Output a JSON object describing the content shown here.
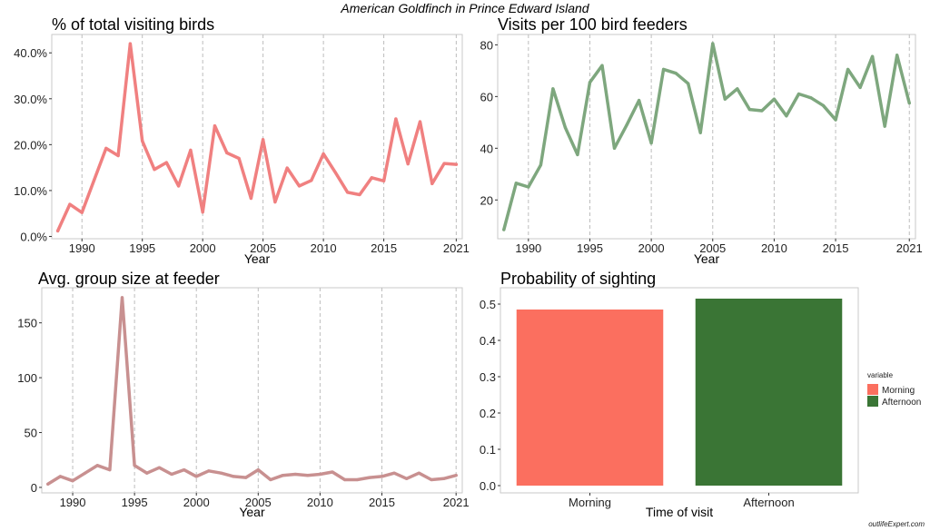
{
  "title": "American Goldfinch in Prince Edward Island",
  "credit": "outlifeExpert.com",
  "colors": {
    "panel_border": "#c9c9c9",
    "grid": "#bdbdbd",
    "pct_line": "#f08080",
    "visits_line": "#7ea77e",
    "group_line": "#c89090",
    "morning": "#fb6f5f",
    "afternoon": "#3a7535"
  },
  "chart_data": [
    {
      "type": "line",
      "title": "% of total visiting birds",
      "xlabel": "Year",
      "ylabel": "",
      "xlim": [
        1987.5,
        2021.5
      ],
      "ylim": [
        -0.5,
        44
      ],
      "x_ticks": [
        1990,
        1995,
        2000,
        2005,
        2010,
        2015,
        2021
      ],
      "y_ticks": [
        0,
        10,
        20,
        30,
        40
      ],
      "y_tick_labels": [
        "0.0%",
        "10.0%",
        "20.0%",
        "30.0%",
        "40.0%"
      ],
      "grid": "dashed vertical",
      "color": "#f08080",
      "x": [
        1988,
        1989,
        1990,
        1991,
        1992,
        1993,
        1994,
        1995,
        1996,
        1997,
        1998,
        1999,
        2000,
        2001,
        2002,
        2003,
        2004,
        2005,
        2006,
        2007,
        2008,
        2009,
        2010,
        2011,
        2012,
        2013,
        2014,
        2015,
        2016,
        2017,
        2018,
        2019,
        2020,
        2021
      ],
      "values": [
        1.2,
        7.0,
        5.2,
        12.2,
        19.2,
        17.6,
        42.0,
        20.8,
        14.6,
        16.1,
        11.0,
        18.8,
        5.3,
        24.1,
        18.2,
        17.0,
        8.3,
        21.1,
        7.5,
        14.9,
        11.0,
        12.2,
        18.0,
        13.9,
        9.6,
        9.1,
        12.8,
        12.1,
        25.6,
        15.8,
        25.0,
        11.5,
        15.9,
        15.7
      ]
    },
    {
      "type": "line",
      "title": "Visits per 100 bird feeders",
      "xlabel": "Year",
      "ylabel": "",
      "xlim": [
        1987.5,
        2021.5
      ],
      "ylim": [
        5,
        84
      ],
      "x_ticks": [
        1990,
        1995,
        2000,
        2005,
        2010,
        2015,
        2021
      ],
      "y_ticks": [
        20,
        40,
        60,
        80
      ],
      "y_tick_labels": [
        "20",
        "40",
        "60",
        "80"
      ],
      "grid": "dashed vertical",
      "color": "#7ea77e",
      "x": [
        1988,
        1989,
        1990,
        1991,
        1992,
        1993,
        1994,
        1995,
        1996,
        1997,
        1998,
        1999,
        2000,
        2001,
        2002,
        2003,
        2004,
        2005,
        2006,
        2007,
        2008,
        2009,
        2010,
        2011,
        2012,
        2013,
        2014,
        2015,
        2016,
        2017,
        2018,
        2019,
        2020,
        2021
      ],
      "values": [
        8.5,
        26.5,
        25.0,
        33.5,
        63.0,
        48.0,
        37.5,
        65.5,
        72.0,
        40.0,
        49.0,
        58.5,
        42.0,
        70.5,
        69.0,
        65.0,
        46.0,
        80.5,
        59.0,
        63.0,
        55.0,
        54.5,
        59.0,
        52.5,
        61.0,
        59.5,
        56.5,
        51.0,
        70.5,
        63.5,
        75.5,
        48.5,
        76.0,
        57.5
      ]
    },
    {
      "type": "line",
      "title": "Avg. group size at feeder",
      "xlabel": "Year",
      "ylabel": "",
      "xlim": [
        1987.5,
        2021.5
      ],
      "ylim": [
        -5,
        182
      ],
      "x_ticks": [
        1990,
        1995,
        2000,
        2005,
        2010,
        2015,
        2021
      ],
      "y_ticks": [
        0,
        50,
        100,
        150
      ],
      "y_tick_labels": [
        "0",
        "50",
        "100",
        "150"
      ],
      "grid": "dashed vertical",
      "color": "#c89090",
      "x": [
        1988,
        1989,
        1990,
        1991,
        1992,
        1993,
        1994,
        1995,
        1996,
        1997,
        1998,
        1999,
        2000,
        2001,
        2002,
        2003,
        2004,
        2005,
        2006,
        2007,
        2008,
        2009,
        2010,
        2011,
        2012,
        2013,
        2014,
        2015,
        2016,
        2017,
        2018,
        2019,
        2020,
        2021
      ],
      "values": [
        3,
        10,
        6,
        13,
        20,
        16,
        173,
        20,
        13,
        18,
        12,
        16,
        10,
        15,
        13,
        10,
        9,
        16,
        7,
        11,
        12,
        11,
        12,
        14,
        7,
        7,
        9,
        10,
        13,
        8,
        13,
        7,
        8,
        11
      ]
    },
    {
      "type": "bar",
      "title": "Probability of sighting",
      "xlabel": "Time of visit",
      "ylabel": "",
      "categories": [
        "Morning",
        "Afternoon"
      ],
      "values": [
        0.485,
        0.515
      ],
      "ylim": [
        -0.02,
        0.545
      ],
      "y_ticks": [
        0,
        0.1,
        0.2,
        0.3,
        0.4,
        0.5
      ],
      "y_tick_labels": [
        "0.0",
        "0.1",
        "0.2",
        "0.3",
        "0.4",
        "0.5"
      ],
      "colors": [
        "#fb6f5f",
        "#3a7535"
      ],
      "legend": {
        "title": "variable",
        "position": "right",
        "items": [
          "Morning",
          "Afternoon"
        ]
      }
    }
  ]
}
